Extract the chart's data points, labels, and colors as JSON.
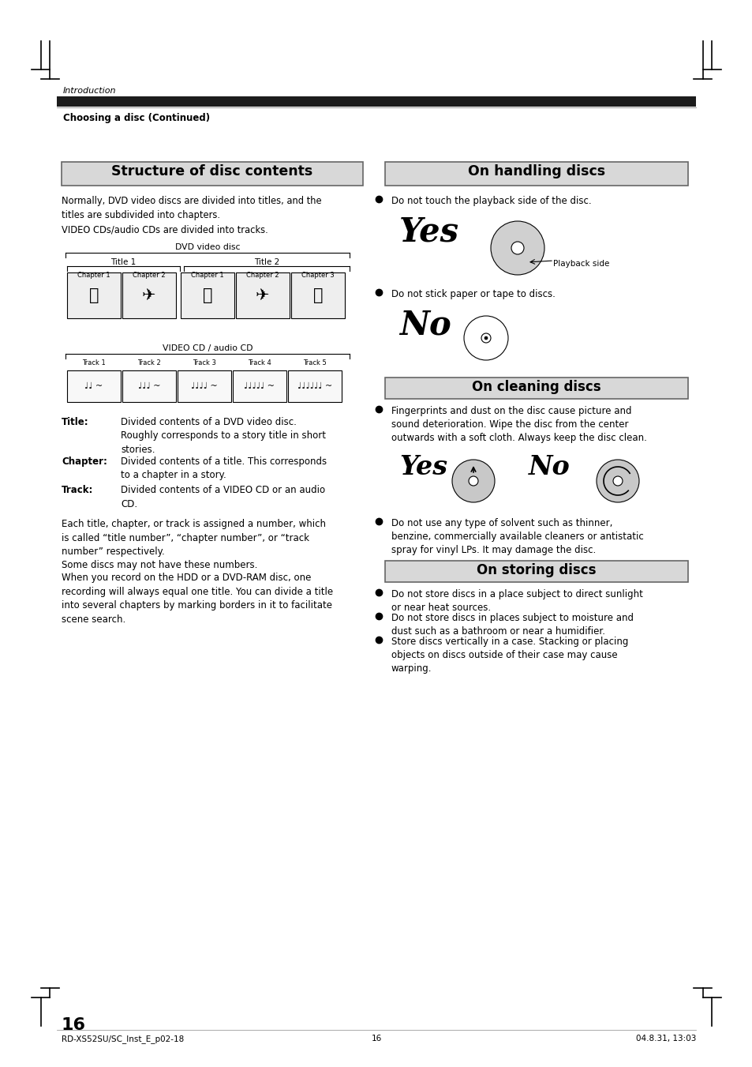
{
  "page_bg": "#ffffff",
  "header_text": "Introduction",
  "subheader_text": "Choosing a disc (Continued)",
  "left_title": "Structure of disc contents",
  "right1_title": "On handling discs",
  "right2_title": "On cleaning discs",
  "right3_title": "On storing discs",
  "footer_left": "RD-XS52SU/SC_Inst_E_p02-18",
  "footer_center": "16",
  "footer_right": "04.8.31, 13:03",
  "page_num": "16",
  "intro_text": "Normally, DVD video discs are divided into titles, and the\ntitles are subdivided into chapters.\nVIDEO CDs/audio CDs are divided into tracks.",
  "dvd_label": "DVD video disc",
  "title1_label": "Title 1",
  "title2_label": "Title 2",
  "chapters": [
    "Chapter 1",
    "Chapter 2",
    "Chapter 1",
    "Chapter 2",
    "Chapter 3"
  ],
  "vcd_label": "VIDEO CD / audio CD",
  "tracks": [
    "Track 1",
    "Track 2",
    "Track 3",
    "Track 4",
    "Track 5"
  ],
  "def_title_bold": "Title",
  "def_title_colon": ":",
  "def_title_text": "Divided contents of a DVD video disc.\nRoughly corresponds to a story title in short\nstories.",
  "def_chapter_bold": "Chapter",
  "def_chapter_text": "Divided contents of a title. This corresponds\nto a chapter in a story.",
  "def_track_bold": "Track",
  "def_track_text": "Divided contents of a VIDEO CD or an audio\nCD.",
  "para1": "Each title, chapter, or track is assigned a number, which\nis called “title number”, “chapter number”, or “track\nnumber” respectively.\nSome discs may not have these numbers.",
  "para2": "When you record on the HDD or a DVD-RAM disc, one\nrecording will always equal one title. You can divide a title\ninto several chapters by marking borders in it to facilitate\nscene search.",
  "h1_b1": "Do not touch the playback side of the disc.",
  "h1_yes": "Yes",
  "h1_playback": "Playback side",
  "h1_b2": "Do not stick paper or tape to discs.",
  "h1_no": "No",
  "h2_b1": "Fingerprints and dust on the disc cause picture and\nsound deterioration. Wipe the disc from the center\noutwards with a soft cloth. Always keep the disc clean.",
  "h2_yes": "Yes",
  "h2_no": "No",
  "h2_b2": "Do not use any type of solvent such as thinner,\nbenzine, commercially available cleaners or antistatic\nspray for vinyl LPs. It may damage the disc.",
  "h3_b1": "Do not store discs in a place subject to direct sunlight\nor near heat sources.",
  "h3_b2": "Do not store discs in places subject to moisture and\ndust such as a bathroom or near a humidifier.",
  "h3_b3": "Store discs vertically in a case. Stacking or placing\nobjects on discs outside of their case may cause\nwarping."
}
